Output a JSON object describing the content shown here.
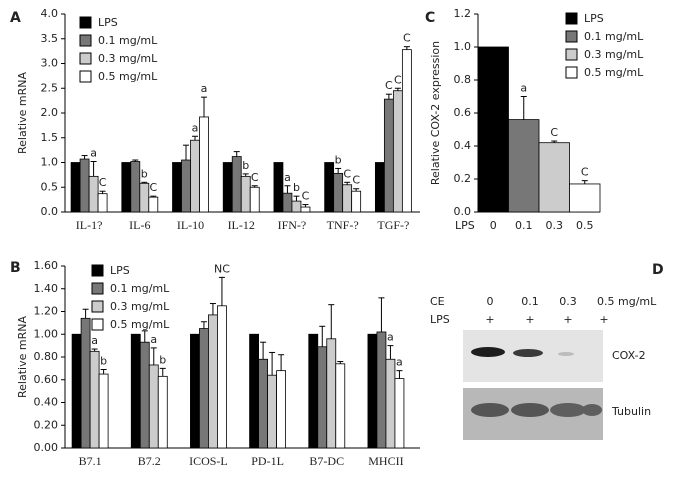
{
  "chart_data": [
    {
      "type": "bar",
      "panel": "A",
      "y_label": "Relative mRNA",
      "categories": [
        "IL-1?",
        "IL-6",
        "IL-10",
        "IL-12",
        "IFN-?",
        "TNF-?",
        "TGF-?"
      ],
      "series": [
        {
          "name": "LPS",
          "color": "#000000",
          "values": [
            1.0,
            1.0,
            1.0,
            1.0,
            1.0,
            1.0,
            1.0
          ],
          "errors": [
            null,
            null,
            null,
            null,
            null,
            null,
            null
          ],
          "significance": [
            null,
            null,
            null,
            null,
            null,
            null,
            null
          ]
        },
        {
          "name": "0.1 mg/mL",
          "color": "#777777",
          "values": [
            1.07,
            1.02,
            1.05,
            1.12,
            0.38,
            0.78,
            2.28
          ],
          "errors": [
            0.07,
            0.03,
            0.3,
            0.1,
            0.15,
            0.1,
            0.1
          ],
          "significance": [
            null,
            null,
            null,
            null,
            "a",
            "b",
            "C"
          ]
        },
        {
          "name": "0.3 mg/mL",
          "color": "#cccccc",
          "values": [
            0.72,
            0.58,
            1.45,
            0.72,
            0.22,
            0.55,
            2.45
          ],
          "errors": [
            0.3,
            0.02,
            0.08,
            0.05,
            0.1,
            0.05,
            0.05
          ],
          "significance": [
            "a",
            "b",
            "a",
            "b",
            "b",
            "C",
            "C"
          ]
        },
        {
          "name": "0.5 mg/mL",
          "color": "#ffffff",
          "values": [
            0.37,
            0.3,
            1.92,
            0.5,
            0.1,
            0.42,
            3.28
          ],
          "errors": [
            0.05,
            0.02,
            0.4,
            0.03,
            0.05,
            0.05,
            0.06
          ],
          "significance": [
            "C",
            "C",
            "a",
            "C",
            "C",
            "C",
            "C"
          ]
        }
      ],
      "ylim": [
        0,
        4
      ],
      "yticks": [
        {
          "value": 0,
          "label": "0.0"
        },
        0.5,
        {
          "value": 1,
          "label": "1.0"
        },
        1.5,
        {
          "value": 2,
          "label": "2.0"
        },
        2.5,
        {
          "value": 3,
          "label": "3.0"
        },
        3.5,
        {
          "value": 4,
          "label": "4.0"
        }
      ]
    },
    {
      "type": "bar",
      "panel": "B",
      "y_label": "Relative mRNA",
      "categories": [
        "B7.1",
        "B7.2",
        "ICOS-L",
        "PD-1L",
        "B7-DC",
        "MHCII"
      ],
      "series": [
        {
          "name": "LPS",
          "color": "#000000",
          "values": [
            1.0,
            1.0,
            1.0,
            1.0,
            1.0,
            1.0
          ],
          "errors": [
            null,
            null,
            null,
            null,
            null,
            null
          ],
          "significance": [
            null,
            null,
            null,
            null,
            null,
            null
          ]
        },
        {
          "name": "0.1 mg/mL",
          "color": "#777777",
          "values": [
            1.14,
            0.93,
            1.05,
            0.78,
            0.89,
            1.02
          ],
          "errors": [
            0.08,
            0.1,
            0.06,
            0.15,
            0.18,
            0.3
          ],
          "significance": [
            null,
            null,
            null,
            null,
            null,
            null
          ]
        },
        {
          "name": "0.3 mg/mL",
          "color": "#cccccc",
          "values": [
            0.85,
            0.73,
            1.17,
            0.64,
            0.96,
            0.78
          ],
          "errors": [
            0.02,
            0.15,
            0.1,
            0.2,
            0.3,
            0.12
          ],
          "significance": [
            "a",
            "a",
            null,
            null,
            null,
            "a"
          ]
        },
        {
          "name": "0.5 mg/mL",
          "color": "#ffffff",
          "values": [
            0.65,
            0.63,
            1.25,
            0.68,
            0.74,
            0.61
          ],
          "errors": [
            0.04,
            0.07,
            0.25,
            0.14,
            0.02,
            0.07
          ],
          "significance": [
            "b",
            "b",
            "NC",
            null,
            null,
            "a"
          ]
        }
      ],
      "ylim": [
        0,
        1.6
      ],
      "yticks": [
        {
          "value": 0,
          "label": "0.00"
        },
        {
          "value": 0.2,
          "label": "0.20"
        },
        {
          "value": 0.4,
          "label": "0.40"
        },
        {
          "value": 0.6,
          "label": "0.60"
        },
        {
          "value": 0.8,
          "label": "0.80"
        },
        {
          "value": 1,
          "label": "1.00"
        },
        {
          "value": 1.2,
          "label": "1.20"
        },
        {
          "value": 1.4,
          "label": "1.40"
        },
        {
          "value": 1.6,
          "label": "1.60"
        }
      ]
    },
    {
      "type": "bar",
      "panel": "C",
      "y_label": "Relative COX-2 expression",
      "x_label": "LPS",
      "categories": [
        "0",
        "0.1",
        "0.3",
        "0.5"
      ],
      "values": [
        1.0,
        0.56,
        0.42,
        0.17
      ],
      "errors": [
        null,
        0.14,
        0.01,
        0.02
      ],
      "significance": [
        null,
        "a",
        "C",
        "C"
      ],
      "colors": [
        "#000000",
        "#777777",
        "#cccccc",
        "#ffffff"
      ],
      "legend": [
        "LPS",
        "0.1 mg/mL",
        "0.3 mg/mL",
        "0.5 mg/mL"
      ],
      "ylim": [
        0,
        1.2
      ],
      "yticks": [
        {
          "value": 0,
          "label": "0.0"
        },
        0.2,
        0.4,
        0.6,
        0.8,
        {
          "value": 1,
          "label": "1.0"
        },
        1.2
      ]
    }
  ],
  "blot": {
    "panel": "D",
    "ce_label": "CE",
    "lps_label": "LPS",
    "doses": [
      "0",
      "0.1",
      "0.3",
      "0.5 mg/mL"
    ],
    "lps": [
      "+",
      "+",
      "+",
      "+"
    ],
    "bands": [
      "COX-2",
      "Tubulin"
    ]
  }
}
